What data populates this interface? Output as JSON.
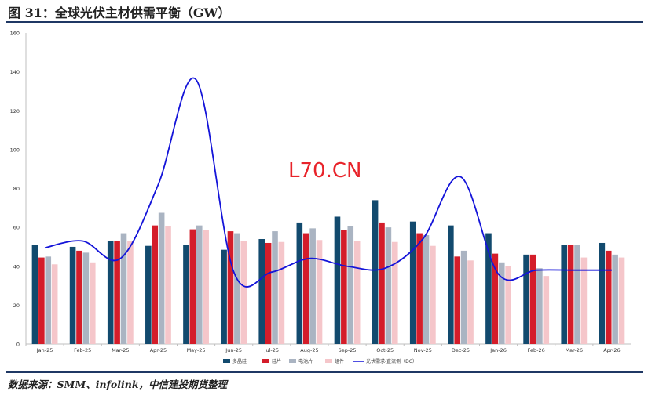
{
  "figure": {
    "title": "图 31：全球光伏主材供需平衡（GW）",
    "source": "数据来源：SMM、infolink，中信建投期货整理",
    "watermark": "L70.CN"
  },
  "colors": {
    "rule": "#1f3864",
    "polysilicon": "#124a6e",
    "wafer": "#d41d2a",
    "cell": "#aab4c2",
    "module": "#f5c6ca",
    "demand": "#1414d9"
  },
  "chart_data": {
    "type": "bar",
    "categories": [
      "Jan-25",
      "Feb-25",
      "Mar-25",
      "Apr-25",
      "May-25",
      "Jun-25",
      "Jul-25",
      "Aug-25",
      "Sep-25",
      "Oct-25",
      "Nov-25",
      "Dec-25",
      "Jan-26",
      "Feb-26",
      "Mar-26",
      "Apr-26"
    ],
    "series": [
      {
        "name": "多晶硅",
        "type": "bar",
        "values": [
          51,
          50,
          53,
          50.5,
          51,
          48.5,
          54,
          62.5,
          65.5,
          74,
          63,
          61,
          57,
          46,
          51,
          52
        ]
      },
      {
        "name": "硅片",
        "type": "bar",
        "values": [
          44.5,
          48,
          53,
          61,
          59,
          58,
          52,
          57,
          58.5,
          62.5,
          57,
          45,
          46.5,
          46,
          51,
          48
        ]
      },
      {
        "name": "电池片",
        "type": "bar",
        "values": [
          45,
          47,
          57,
          67.5,
          61,
          57,
          58,
          59.5,
          60.5,
          60,
          56,
          48,
          42,
          39,
          51,
          46
        ]
      },
      {
        "name": "组件",
        "type": "bar",
        "values": [
          41,
          42,
          53,
          60.5,
          58.5,
          53,
          52.5,
          53.5,
          53,
          52.5,
          50.5,
          43,
          40,
          35,
          44.5,
          44.5
        ]
      },
      {
        "name": "光伏需求-直流侧（DC）",
        "type": "line",
        "values": [
          49.5,
          53,
          44,
          82,
          136,
          37,
          37,
          44,
          40,
          39,
          54,
          86,
          36,
          38,
          38,
          38
        ]
      }
    ],
    "yticks": [
      0,
      20,
      40,
      60,
      80,
      100,
      120,
      140,
      160
    ],
    "ylim": [
      0,
      160
    ],
    "grid": false,
    "legend": "bottom"
  }
}
